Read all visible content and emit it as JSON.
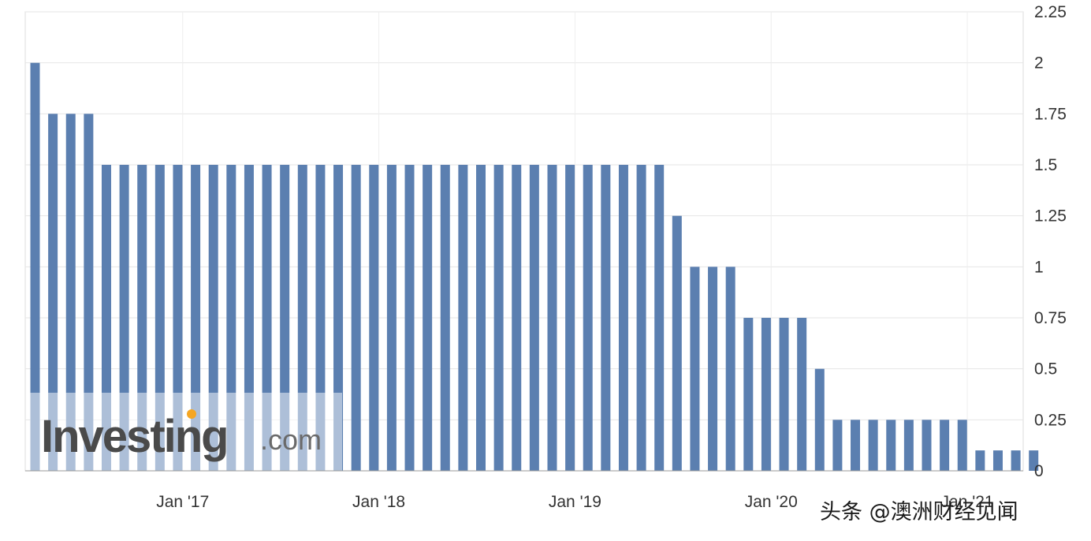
{
  "chart_data": {
    "type": "bar",
    "x_tick_labels": [
      "Jan '17",
      "Jan '18",
      "Jan '19",
      "Jan '20",
      "Jan '21"
    ],
    "y_ticks": [
      0,
      0.25,
      0.5,
      0.75,
      1,
      1.25,
      1.5,
      1.75,
      2,
      2.25
    ],
    "ylim": [
      0,
      2.25
    ],
    "grid": true,
    "y_axis_side": "right",
    "bar_color": "#5b7fb0",
    "values": [
      2,
      1.75,
      1.75,
      1.75,
      1.5,
      1.5,
      1.5,
      1.5,
      1.5,
      1.5,
      1.5,
      1.5,
      1.5,
      1.5,
      1.5,
      1.5,
      1.5,
      1.5,
      1.5,
      1.5,
      1.5,
      1.5,
      1.5,
      1.5,
      1.5,
      1.5,
      1.5,
      1.5,
      1.5,
      1.5,
      1.5,
      1.5,
      1.5,
      1.5,
      1.5,
      1.5,
      1.25,
      1,
      1,
      1,
      0.75,
      0.75,
      0.75,
      0.75,
      0.5,
      0.25,
      0.25,
      0.25,
      0.25,
      0.25,
      0.25,
      0.25,
      0.25,
      0.1,
      0.1,
      0.1,
      0.1
    ]
  },
  "watermark": {
    "brand": "Investing",
    "suffix": ".com",
    "accent_color": "#f5a623"
  },
  "credit": {
    "text": "头条 @澳洲财经见闻"
  }
}
